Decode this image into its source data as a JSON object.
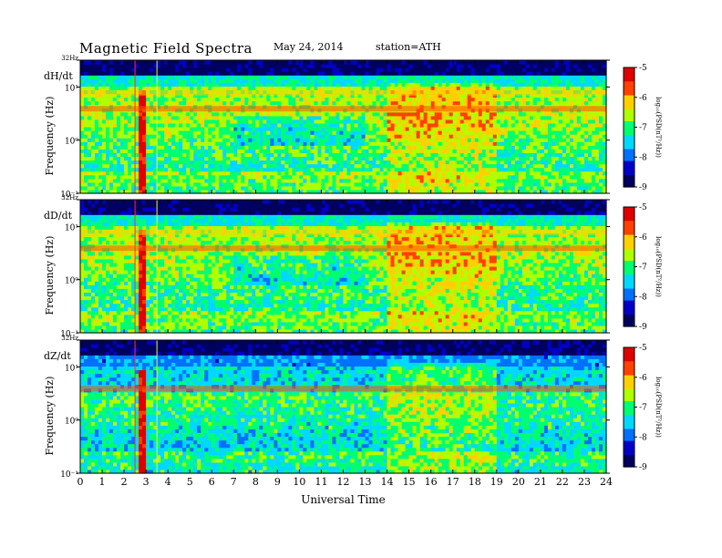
{
  "header": {
    "title": "Magnetic  Field  Spectra",
    "date": "May 24, 2014",
    "station": "station=ATH"
  },
  "chart_data": [
    {
      "type": "heatmap",
      "panel_label": "dH/dt",
      "ylabel": "Frequency (Hz)",
      "xlabel": "Universal Time",
      "x_ticks": [
        "0",
        "1",
        "2",
        "3",
        "4",
        "5",
        "6",
        "7",
        "8",
        "9",
        "10",
        "11",
        "12",
        "13",
        "14",
        "15",
        "16",
        "17",
        "18",
        "19",
        "20",
        "21",
        "22",
        "23",
        "24"
      ],
      "xlim": [
        0,
        24
      ],
      "y_scale": "log",
      "ylim": [
        0.1,
        32
      ],
      "y_ticks": [
        {
          "value": 32,
          "label": "32Hz"
        },
        {
          "value": 10,
          "label": "10¹"
        },
        {
          "value": 1,
          "label": "10⁰"
        },
        {
          "value": 0.1,
          "label": "10⁻¹"
        }
      ],
      "colorbar": {
        "label": "log₁₀(PSD(nT²/Hz))",
        "ticks": [
          "-5",
          "-6",
          "-7",
          "-8",
          "-9"
        ],
        "range": [
          -9,
          -5
        ]
      },
      "resonance_bands_hz": [
        3.9,
        7.8
      ],
      "vertical_markers_ut": [
        2.5,
        3.5
      ],
      "disturbance_ut": [
        2.7,
        3.0
      ],
      "activity_interval_ut": [
        14,
        19
      ]
    },
    {
      "type": "heatmap",
      "panel_label": "dD/dt",
      "ylabel": "Frequency (Hz)",
      "xlabel": "Universal Time",
      "x_ticks": [
        "0",
        "1",
        "2",
        "3",
        "4",
        "5",
        "6",
        "7",
        "8",
        "9",
        "10",
        "11",
        "12",
        "13",
        "14",
        "15",
        "16",
        "17",
        "18",
        "19",
        "20",
        "21",
        "22",
        "23",
        "24"
      ],
      "xlim": [
        0,
        24
      ],
      "y_scale": "log",
      "ylim": [
        0.1,
        32
      ],
      "y_ticks": [
        {
          "value": 32,
          "label": "32Hz"
        },
        {
          "value": 10,
          "label": "10¹"
        },
        {
          "value": 1,
          "label": "10⁰"
        },
        {
          "value": 0.1,
          "label": "10⁻¹"
        }
      ],
      "colorbar": {
        "label": "log₁₀(PSD(nT²/Hz))",
        "ticks": [
          "-5",
          "-6",
          "-7",
          "-8",
          "-9"
        ],
        "range": [
          -9,
          -5
        ]
      },
      "resonance_bands_hz": [
        3.9,
        7.8
      ],
      "vertical_markers_ut": [
        2.5,
        3.5
      ],
      "disturbance_ut": [
        2.7,
        3.0
      ],
      "activity_interval_ut": [
        14,
        19
      ]
    },
    {
      "type": "heatmap",
      "panel_label": "dZ/dt",
      "ylabel": "Frequency (Hz)",
      "xlabel": "Universal Time",
      "x_ticks": [
        "0",
        "1",
        "2",
        "3",
        "4",
        "5",
        "6",
        "7",
        "8",
        "9",
        "10",
        "11",
        "12",
        "13",
        "14",
        "15",
        "16",
        "17",
        "18",
        "19",
        "20",
        "21",
        "22",
        "23",
        "24"
      ],
      "xlim": [
        0,
        24
      ],
      "y_scale": "log",
      "ylim": [
        0.1,
        32
      ],
      "y_ticks": [
        {
          "value": 32,
          "label": "32Hz"
        },
        {
          "value": 10,
          "label": "10¹"
        },
        {
          "value": 1,
          "label": "10⁰"
        },
        {
          "value": 0.1,
          "label": "10⁻¹"
        }
      ],
      "colorbar": {
        "label": "log₁₀(PSD(nT²/Hz))",
        "ticks": [
          "-5",
          "-6",
          "-7",
          "-8",
          "-9"
        ],
        "range": [
          -9,
          -5
        ]
      },
      "resonance_bands_hz": [
        3.9
      ],
      "vertical_markers_ut": [
        2.5,
        3.5
      ],
      "disturbance_ut": [
        2.7,
        3.0
      ],
      "activity_interval_ut": [
        14,
        19
      ]
    }
  ],
  "colors": {
    "colormap": [
      "#000060",
      "#0000c8",
      "#0070ff",
      "#00d8ff",
      "#00ff70",
      "#b0ff00",
      "#ffd000",
      "#ff4000",
      "#e00000"
    ],
    "marker": "#ff3030",
    "marker2": "#e0ff40"
  }
}
